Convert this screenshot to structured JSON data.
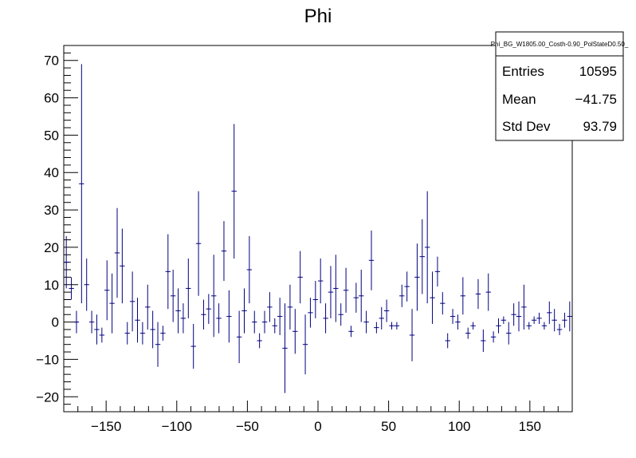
{
  "chart_data": {
    "type": "scatter",
    "title": "Phi",
    "xlabel": "",
    "ylabel": "",
    "xlim": [
      -180,
      180
    ],
    "ylim": [
      -24,
      74
    ],
    "x_ticks": [
      -150,
      -100,
      -50,
      0,
      50,
      100,
      150
    ],
    "y_ticks": [
      -20,
      -10,
      0,
      10,
      20,
      30,
      40,
      50,
      60,
      70
    ],
    "grid": false,
    "marker_color": "#000080",
    "bin_width": 3.6,
    "stats_box": {
      "name": "Phi_BG_W1805.00_Costh-0.90_PolStateD0.50_",
      "rows": [
        {
          "label": "Entries",
          "value": "10595"
        },
        {
          "label": "Mean",
          "value": "−41.75"
        },
        {
          "label": "Std Dev",
          "value": "93.79"
        }
      ]
    },
    "points": [
      {
        "x": -178.2,
        "y": 16,
        "err": 7
      },
      {
        "x": -174.6,
        "y": 9,
        "err": 3
      },
      {
        "x": -171.0,
        "y": 0,
        "err": 3
      },
      {
        "x": -167.4,
        "y": 37,
        "err": 32
      },
      {
        "x": -163.8,
        "y": 10,
        "err": 7
      },
      {
        "x": -160.2,
        "y": 0,
        "err": 3
      },
      {
        "x": -156.6,
        "y": -2,
        "err": 4
      },
      {
        "x": -153.0,
        "y": -3.5,
        "err": 2
      },
      {
        "x": -149.4,
        "y": 8.5,
        "err": 8
      },
      {
        "x": -145.8,
        "y": 5,
        "err": 8
      },
      {
        "x": -142.2,
        "y": 18.5,
        "err": 12
      },
      {
        "x": -138.6,
        "y": 15,
        "err": 10
      },
      {
        "x": -135.0,
        "y": -3,
        "err": 3
      },
      {
        "x": -131.4,
        "y": 5.5,
        "err": 8
      },
      {
        "x": -127.8,
        "y": 0.5,
        "err": 6
      },
      {
        "x": -124.2,
        "y": -3,
        "err": 3
      },
      {
        "x": -120.6,
        "y": 4,
        "err": 6
      },
      {
        "x": -117.0,
        "y": -2,
        "err": 5
      },
      {
        "x": -113.4,
        "y": -6,
        "err": 6
      },
      {
        "x": -109.8,
        "y": -3,
        "err": 2
      },
      {
        "x": -106.2,
        "y": 13.5,
        "err": 10
      },
      {
        "x": -102.6,
        "y": 7,
        "err": 7
      },
      {
        "x": -99.0,
        "y": 3,
        "err": 6
      },
      {
        "x": -95.4,
        "y": 1,
        "err": 4
      },
      {
        "x": -91.8,
        "y": 9,
        "err": 8
      },
      {
        "x": -88.2,
        "y": -6.5,
        "err": 6
      },
      {
        "x": -84.6,
        "y": 21,
        "err": 14
      },
      {
        "x": -81.0,
        "y": 2,
        "err": 4
      },
      {
        "x": -77.4,
        "y": 3.5,
        "err": 4
      },
      {
        "x": -73.8,
        "y": 7,
        "err": 11
      },
      {
        "x": -70.2,
        "y": 1,
        "err": 4
      },
      {
        "x": -66.6,
        "y": 19,
        "err": 8
      },
      {
        "x": -63.0,
        "y": 1.5,
        "err": 7
      },
      {
        "x": -59.4,
        "y": 35,
        "err": 18
      },
      {
        "x": -55.8,
        "y": -4,
        "err": 7
      },
      {
        "x": -52.2,
        "y": 3,
        "err": 6
      },
      {
        "x": -48.6,
        "y": 14,
        "err": 9
      },
      {
        "x": -45.0,
        "y": 0,
        "err": 3
      },
      {
        "x": -41.4,
        "y": -5,
        "err": 2
      },
      {
        "x": -37.8,
        "y": 0,
        "err": 3
      },
      {
        "x": -34.2,
        "y": 4,
        "err": 4
      },
      {
        "x": -30.6,
        "y": -1,
        "err": 2
      },
      {
        "x": -27.0,
        "y": 1.5,
        "err": 5
      },
      {
        "x": -23.4,
        "y": -7,
        "err": 12
      },
      {
        "x": -19.8,
        "y": 4,
        "err": 6
      },
      {
        "x": -16.2,
        "y": -2.5,
        "err": 6
      },
      {
        "x": -12.6,
        "y": 12,
        "err": 7
      },
      {
        "x": -9.0,
        "y": -6,
        "err": 8
      },
      {
        "x": -5.4,
        "y": 2.5,
        "err": 4
      },
      {
        "x": -1.8,
        "y": 6,
        "err": 5
      },
      {
        "x": 1.8,
        "y": 11,
        "err": 6
      },
      {
        "x": 5.4,
        "y": 1,
        "err": 4
      },
      {
        "x": 9.0,
        "y": 8,
        "err": 7
      },
      {
        "x": 12.6,
        "y": 9,
        "err": 9
      },
      {
        "x": 16.2,
        "y": 2,
        "err": 3
      },
      {
        "x": 19.8,
        "y": 8.5,
        "err": 6
      },
      {
        "x": 23.4,
        "y": -2.5,
        "err": 1.5
      },
      {
        "x": 27.0,
        "y": 6.5,
        "err": 4
      },
      {
        "x": 30.6,
        "y": 7,
        "err": 7
      },
      {
        "x": 34.2,
        "y": 0,
        "err": 3
      },
      {
        "x": 37.8,
        "y": 16.5,
        "err": 8
      },
      {
        "x": 41.4,
        "y": -1.5,
        "err": 1.5
      },
      {
        "x": 45.0,
        "y": 1,
        "err": 3
      },
      {
        "x": 48.6,
        "y": 3,
        "err": 3
      },
      {
        "x": 52.2,
        "y": -1,
        "err": 1
      },
      {
        "x": 55.8,
        "y": -1,
        "err": 1
      },
      {
        "x": 59.4,
        "y": 7,
        "err": 3
      },
      {
        "x": 63.0,
        "y": 9.5,
        "err": 4
      },
      {
        "x": 66.6,
        "y": -3.5,
        "err": 7
      },
      {
        "x": 70.2,
        "y": 12,
        "err": 9
      },
      {
        "x": 73.8,
        "y": 17.5,
        "err": 10
      },
      {
        "x": 77.4,
        "y": 20,
        "err": 15
      },
      {
        "x": 81.0,
        "y": 6.5,
        "err": 7
      },
      {
        "x": 84.6,
        "y": 13.5,
        "err": 4
      },
      {
        "x": 88.2,
        "y": 5,
        "err": 3
      },
      {
        "x": 91.8,
        "y": -5,
        "err": 2
      },
      {
        "x": 95.4,
        "y": 1.5,
        "err": 2
      },
      {
        "x": 99.0,
        "y": 0,
        "err": 2
      },
      {
        "x": 102.6,
        "y": 7,
        "err": 5
      },
      {
        "x": 106.2,
        "y": -3,
        "err": 1.5
      },
      {
        "x": 109.8,
        "y": -1,
        "err": 1
      },
      {
        "x": 113.4,
        "y": 7.5,
        "err": 4
      },
      {
        "x": 117.0,
        "y": -5,
        "err": 3
      },
      {
        "x": 120.6,
        "y": 8,
        "err": 5
      },
      {
        "x": 124.2,
        "y": -4,
        "err": 1.5
      },
      {
        "x": 127.8,
        "y": -1,
        "err": 2
      },
      {
        "x": 131.4,
        "y": 0.5,
        "err": 1
      },
      {
        "x": 135.0,
        "y": -3,
        "err": 3
      },
      {
        "x": 138.6,
        "y": 2,
        "err": 3
      },
      {
        "x": 142.2,
        "y": 1.5,
        "err": 4
      },
      {
        "x": 145.8,
        "y": 4,
        "err": 6
      },
      {
        "x": 149.4,
        "y": -1,
        "err": 1
      },
      {
        "x": 153.0,
        "y": 0.5,
        "err": 1
      },
      {
        "x": 156.6,
        "y": 1,
        "err": 1.5
      },
      {
        "x": 160.2,
        "y": -1,
        "err": 1
      },
      {
        "x": 163.8,
        "y": 2.5,
        "err": 3
      },
      {
        "x": 167.4,
        "y": 0.5,
        "err": 3
      },
      {
        "x": 171.0,
        "y": -2,
        "err": 1.5
      },
      {
        "x": 174.6,
        "y": 0.5,
        "err": 2
      },
      {
        "x": 178.2,
        "y": 1.5,
        "err": 4
      }
    ]
  }
}
